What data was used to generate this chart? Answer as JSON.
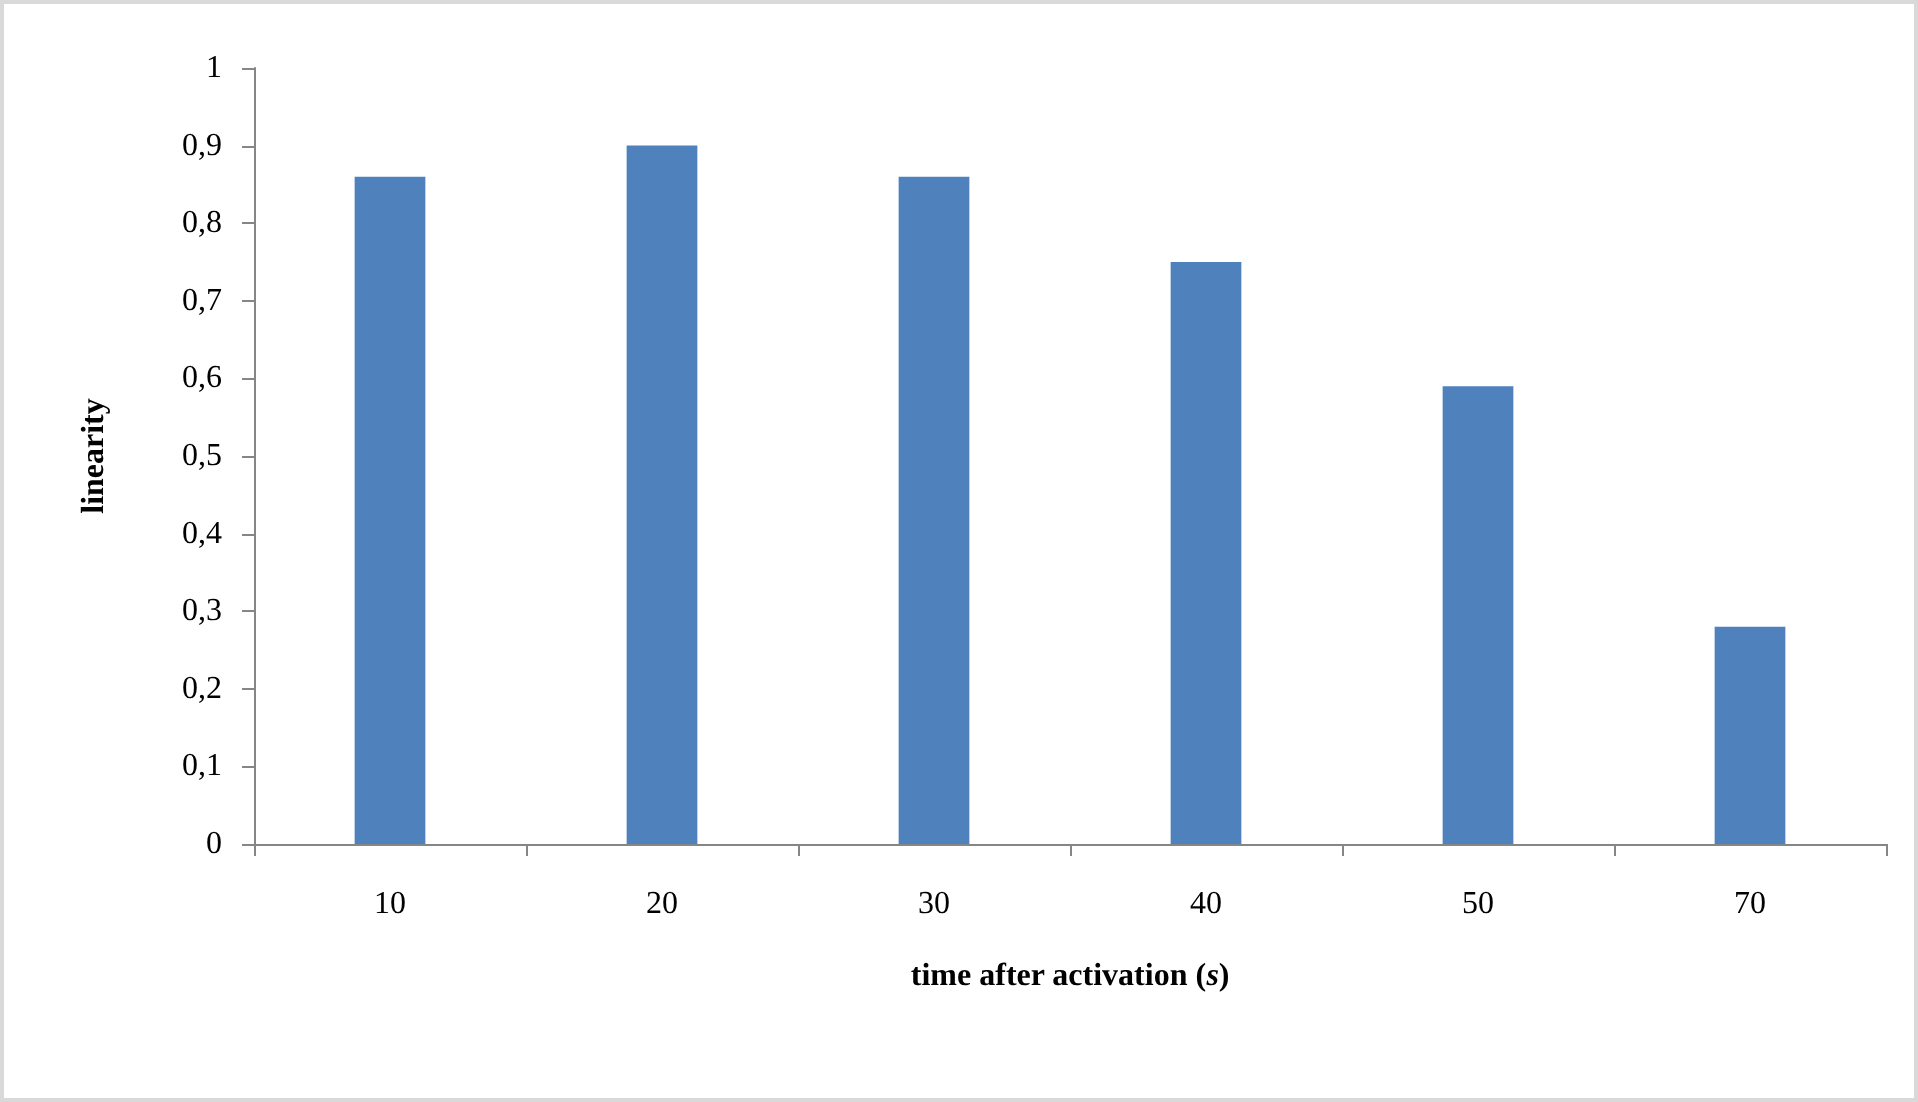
{
  "chart_data": {
    "type": "bar",
    "xlabel": "time after activation (s)",
    "ylabel": "linearity",
    "categories": [
      "10",
      "20",
      "30",
      "40",
      "50",
      "70"
    ],
    "values": [
      0.86,
      0.9,
      0.86,
      0.75,
      0.59,
      0.28
    ],
    "color": "#4f81bd",
    "ylim": [
      0,
      1
    ],
    "yticks": [
      0,
      {
        "value": 0.1,
        "label": "0,1"
      },
      {
        "value": 0.2,
        "label": "0,2"
      },
      {
        "value": 0.3,
        "label": "0,3"
      },
      {
        "value": 0.4,
        "label": "0,4"
      },
      {
        "value": 0.5,
        "label": "0,5"
      },
      {
        "value": 0.6,
        "label": "0,6"
      },
      {
        "value": 0.7,
        "label": "0,7"
      },
      {
        "value": 0.8,
        "label": "0,8"
      },
      {
        "value": 0.9,
        "label": "0,9"
      },
      1
    ],
    "grid": false
  }
}
